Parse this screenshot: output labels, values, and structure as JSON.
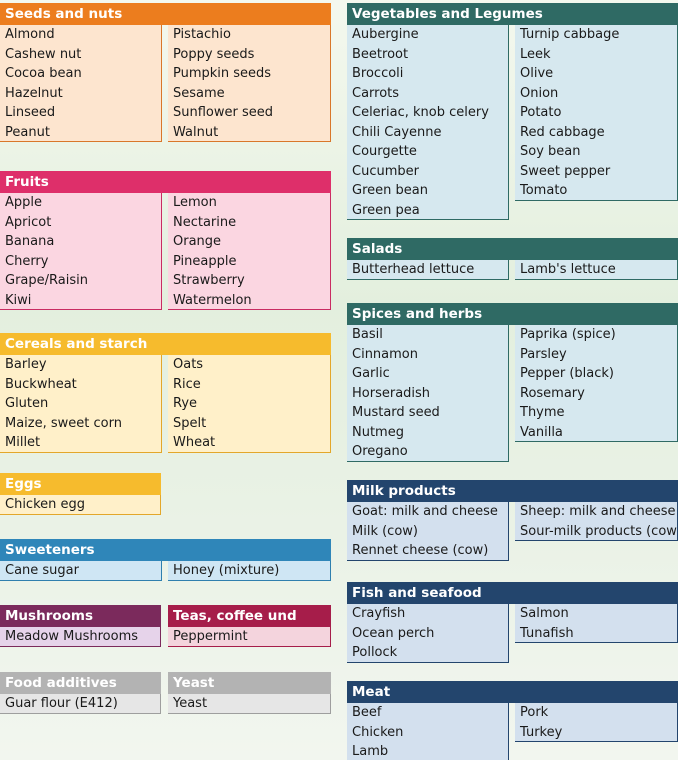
{
  "groups": [
    {
      "id": "seeds-and-nuts",
      "title": "Seeds and nuts",
      "header_color": "#ec7d1e",
      "fill": "#fde5cf",
      "line": "#d9772a",
      "left": [
        "Almond",
        "Cashew nut",
        "Cocoa bean",
        "Hazelnut",
        "Linseed",
        "Peanut"
      ],
      "right": [
        "Pistachio",
        "Poppy seeds",
        "Pumpkin seeds",
        "Sesame",
        "Sunflower seed",
        "Walnut"
      ]
    },
    {
      "id": "fruits",
      "title": "Fruits",
      "header_color": "#de2f6a",
      "fill": "#fbd6e1",
      "line": "#c92c62",
      "left": [
        "Apple",
        "Apricot",
        "Banana",
        "Cherry",
        "Grape/Raisin",
        "Kiwi"
      ],
      "right": [
        "Lemon",
        "Nectarine",
        "Orange",
        "Pineapple",
        "Strawberry",
        "Watermelon"
      ]
    },
    {
      "id": "cereals-and-starch",
      "title": "Cereals and starch",
      "header_color": "#f6bb2d",
      "fill": "#fff0c9",
      "line": "#e3a72a",
      "left": [
        "Barley",
        "Buckwheat",
        "Gluten",
        "Maize, sweet corn",
        "Millet"
      ],
      "right": [
        "Oats",
        "Rice",
        "Rye",
        "Spelt",
        "Wheat"
      ]
    },
    {
      "id": "eggs",
      "title": "Eggs",
      "header_color": "#f6bb2d",
      "fill": "#fff0c9",
      "line": "#e3a72a",
      "left": [
        "Chicken egg"
      ],
      "right": []
    },
    {
      "id": "sweeteners",
      "title": "Sweeteners",
      "header_color": "#2f86b9",
      "fill": "#cfe6f4",
      "line": "#2f7fae",
      "left": [
        "Cane sugar"
      ],
      "right": [
        "Honey (mixture)"
      ]
    },
    {
      "id": "mushrooms",
      "title": "Mushrooms",
      "header_color": "#7b2a5c",
      "fill": "#e6d3ea",
      "line": "#7b2a5c",
      "left": [
        "Meadow Mushrooms"
      ],
      "right": []
    },
    {
      "id": "teas-coffee-tannin",
      "title": "Teas, coffee und tannin",
      "header_color": "#a61d4a",
      "fill": "#f4d4dd",
      "line": "#a61d4a",
      "left": [
        "Peppermint"
      ],
      "right": []
    },
    {
      "id": "food-additives",
      "title": "Food additives",
      "header_color": "#b3b3b3",
      "fill": "#e6e6e6",
      "line": "#9e9e9e",
      "left": [
        "Guar flour (E412)"
      ],
      "right": []
    },
    {
      "id": "yeast",
      "title": "Yeast",
      "header_color": "#b3b3b3",
      "fill": "#e6e6e6",
      "line": "#9e9e9e",
      "left": [
        "Yeast"
      ],
      "right": []
    },
    {
      "id": "vegetables-and-legumes",
      "title": "Vegetables and Legumes",
      "header_color": "#2f6a64",
      "fill": "#d6e8ef",
      "line": "#2f6a64",
      "left": [
        "Aubergine",
        "Beetroot",
        "Broccoli",
        "Carrots",
        "Celeriac, knob celery",
        "Chili Cayenne",
        "Courgette",
        "Cucumber",
        "Green bean",
        "Green pea"
      ],
      "right": [
        "Turnip cabbage",
        "Leek",
        "Olive",
        "Onion",
        "Potato",
        "Red cabbage",
        "Soy bean",
        "Sweet pepper",
        "Tomato"
      ]
    },
    {
      "id": "salads",
      "title": "Salads",
      "header_color": "#2f6a64",
      "fill": "#d6e8ef",
      "line": "#2f6a64",
      "left": [
        "Butterhead lettuce"
      ],
      "right": [
        "Lamb's lettuce"
      ]
    },
    {
      "id": "spices-and-herbs",
      "title": "Spices and herbs",
      "header_color": "#2f6a64",
      "fill": "#d6e8ef",
      "line": "#2f6a64",
      "left": [
        "Basil",
        "Cinnamon",
        "Garlic",
        "Horseradish",
        "Mustard seed",
        "Nutmeg",
        "Oregano"
      ],
      "right": [
        "Paprika (spice)",
        "Parsley",
        "Pepper (black)",
        "Rosemary",
        "Thyme",
        "Vanilla"
      ]
    },
    {
      "id": "milk-products",
      "title": "Milk products",
      "header_color": "#23456d",
      "fill": "#d3e0ee",
      "line": "#23456d",
      "left": [
        "Goat: milk and cheese",
        "Milk (cow)",
        "Rennet cheese (cow)"
      ],
      "right": [
        "Sheep: milk and cheese",
        "Sour-milk products (cow)"
      ]
    },
    {
      "id": "fish-and-seafood",
      "title": "Fish and seafood",
      "header_color": "#23456d",
      "fill": "#d3e0ee",
      "line": "#23456d",
      "left": [
        "Crayfish",
        "Ocean perch",
        "Pollock"
      ],
      "right": [
        "Salmon",
        "Tunafish"
      ]
    },
    {
      "id": "meat",
      "title": "Meat",
      "header_color": "#23456d",
      "fill": "#d3e0ee",
      "line": "#23456d",
      "left": [
        "Beef",
        "Chicken",
        "Lamb"
      ],
      "right": [
        "Pork",
        "Turkey"
      ]
    }
  ]
}
